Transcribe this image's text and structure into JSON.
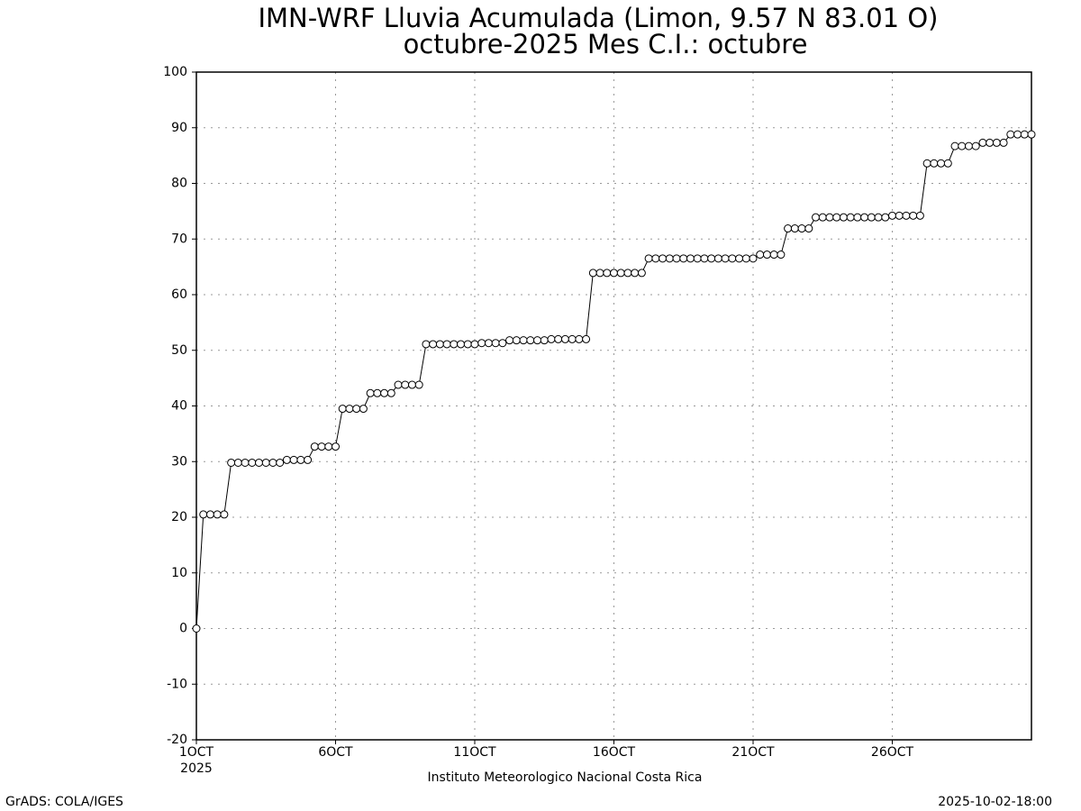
{
  "chart_data": {
    "type": "line",
    "title": "IMN-WRF  Lluvia Acumulada (Limon, 9.57  N 83.01  O)",
    "subtitle": "octubre-2025 Mes C.I.: octubre",
    "x_sublabel": "2025",
    "xlabel": "Instituto Meteorologico Nacional Costa Rica",
    "footer_left": "GrADS: COLA/IGES",
    "footer_right": "2025-10-02-18:00",
    "categories": [
      "1OCT",
      null,
      null,
      null,
      null,
      null,
      null,
      null,
      null,
      null,
      null,
      null,
      null,
      null,
      null,
      null,
      null,
      null,
      null,
      null,
      "6OCT",
      null,
      null,
      null,
      null,
      null,
      null,
      null,
      null,
      null,
      null,
      null,
      null,
      null,
      null,
      null,
      null,
      null,
      null,
      null,
      "11OCT",
      null,
      null,
      null,
      null,
      null,
      null,
      null,
      null,
      null,
      null,
      null,
      null,
      null,
      null,
      null,
      null,
      null,
      null,
      null,
      "16OCT",
      null,
      null,
      null,
      null,
      null,
      null,
      null,
      null,
      null,
      null,
      null,
      null,
      null,
      null,
      null,
      null,
      null,
      null,
      null,
      "21OCT",
      null,
      null,
      null,
      null,
      null,
      null,
      null,
      null,
      null,
      null,
      null,
      null,
      null,
      null,
      null,
      null,
      null,
      null,
      null,
      "26OCT",
      null,
      null,
      null,
      null,
      null,
      null,
      null,
      null,
      null,
      null,
      null,
      null,
      null,
      null,
      null,
      null,
      null,
      null,
      null,
      null
    ],
    "series": [
      {
        "color": "#000000",
        "values": [
          0,
          20.5,
          20.5,
          20.5,
          20.5,
          29.8,
          29.8,
          29.8,
          29.8,
          29.8,
          29.8,
          29.8,
          29.8,
          30.3,
          30.3,
          30.3,
          30.3,
          32.7,
          32.7,
          32.7,
          32.7,
          39.5,
          39.5,
          39.5,
          39.5,
          42.3,
          42.3,
          42.3,
          42.3,
          43.8,
          43.8,
          43.8,
          43.8,
          51.1,
          51.1,
          51.1,
          51.1,
          51.1,
          51.1,
          51.1,
          51.1,
          51.3,
          51.3,
          51.3,
          51.3,
          51.8,
          51.8,
          51.8,
          51.8,
          51.8,
          51.8,
          52.0,
          52.0,
          52.0,
          52.0,
          52.0,
          52.0,
          63.9,
          63.9,
          63.9,
          63.9,
          63.9,
          63.9,
          63.9,
          63.9,
          66.5,
          66.5,
          66.5,
          66.5,
          66.5,
          66.5,
          66.5,
          66.5,
          66.5,
          66.5,
          66.5,
          66.5,
          66.5,
          66.5,
          66.5,
          66.5,
          67.2,
          67.2,
          67.2,
          67.2,
          71.9,
          71.9,
          71.9,
          71.9,
          73.9,
          73.9,
          73.9,
          73.9,
          73.9,
          73.9,
          73.9,
          73.9,
          73.9,
          73.9,
          73.9,
          74.2,
          74.2,
          74.2,
          74.2,
          74.2,
          83.6,
          83.6,
          83.6,
          83.6,
          86.7,
          86.7,
          86.7,
          86.7,
          87.3,
          87.3,
          87.3,
          87.3,
          88.8,
          88.8,
          88.8,
          88.8
        ]
      }
    ],
    "ylim": [
      -20,
      100
    ],
    "yticks": [
      -20,
      -10,
      0,
      10,
      20,
      30,
      40,
      50,
      60,
      70,
      80,
      90,
      100
    ],
    "grid": true
  }
}
